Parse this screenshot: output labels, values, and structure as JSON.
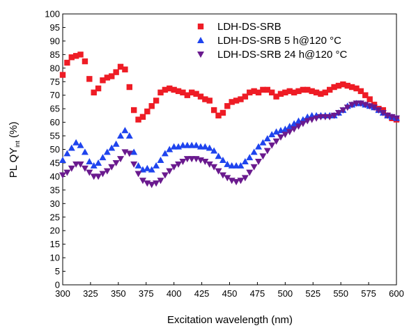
{
  "chart_data": {
    "type": "scatter",
    "xlabel": "Excitation wavelength (nm)",
    "ylabel_main": "PL QY",
    "ylabel_sub": "int",
    "ylabel_unit": " (%)",
    "xlim": [
      300,
      600
    ],
    "ylim": [
      0,
      100
    ],
    "xticks": [
      300,
      325,
      350,
      375,
      400,
      425,
      450,
      475,
      500,
      525,
      550,
      575,
      600
    ],
    "yticks": [
      0,
      5,
      10,
      15,
      20,
      25,
      30,
      35,
      40,
      45,
      50,
      55,
      60,
      65,
      70,
      75,
      80,
      85,
      90,
      95,
      100
    ],
    "grid": false,
    "legend_position": "top-right",
    "series": [
      {
        "name": "LDH-DS-SRB",
        "marker": "square",
        "color": "#ee1c25",
        "x": [
          300,
          304,
          308,
          312,
          316,
          320,
          324,
          328,
          332,
          336,
          340,
          344,
          348,
          352,
          356,
          360,
          364,
          368,
          372,
          376,
          380,
          384,
          388,
          392,
          396,
          400,
          404,
          408,
          412,
          416,
          420,
          424,
          428,
          432,
          436,
          440,
          444,
          448,
          452,
          456,
          460,
          464,
          468,
          472,
          476,
          480,
          484,
          488,
          492,
          496,
          500,
          504,
          508,
          512,
          516,
          520,
          524,
          528,
          532,
          536,
          540,
          544,
          548,
          552,
          556,
          560,
          564,
          568,
          572,
          576,
          580,
          584,
          588,
          592,
          596,
          600
        ],
        "y": [
          77.5,
          82,
          84,
          84.5,
          85,
          82.5,
          76,
          71,
          72.5,
          75.5,
          76.5,
          77,
          78.5,
          80.5,
          79.5,
          73,
          64.5,
          61,
          62,
          64,
          66,
          68,
          71,
          72,
          72.5,
          72,
          71.5,
          71,
          70,
          71,
          70.5,
          69.5,
          68.5,
          68,
          64.5,
          62.5,
          63.5,
          66,
          67.5,
          68,
          68.5,
          69.5,
          71,
          71.5,
          71,
          72,
          72,
          71,
          69.5,
          70.5,
          71,
          71.5,
          71,
          71.5,
          72,
          72,
          71.5,
          71,
          70.5,
          71,
          72,
          73,
          73.5,
          74,
          73.5,
          73,
          72.5,
          71.5,
          70,
          68.5,
          66.5,
          65,
          64.5,
          62.5,
          61.5,
          61
        ]
      },
      {
        "name": "LDH-DS-SRB 5 h@120 °C",
        "marker": "triangle-up",
        "color": "#1f44ee",
        "x": [
          300,
          304,
          308,
          312,
          316,
          320,
          324,
          328,
          332,
          336,
          340,
          344,
          348,
          352,
          356,
          360,
          364,
          368,
          372,
          376,
          380,
          384,
          388,
          392,
          396,
          400,
          404,
          408,
          412,
          416,
          420,
          424,
          428,
          432,
          436,
          440,
          444,
          448,
          452,
          456,
          460,
          464,
          468,
          472,
          476,
          480,
          484,
          488,
          492,
          496,
          500,
          504,
          508,
          512,
          516,
          520,
          524,
          528,
          532,
          536,
          540,
          544,
          548,
          552,
          556,
          560,
          564,
          568,
          572,
          576,
          580,
          584,
          588,
          592,
          596,
          600
        ],
        "y": [
          46,
          48.5,
          50.5,
          52.5,
          51.5,
          49,
          45.5,
          44,
          45,
          47,
          49,
          50.5,
          52,
          55,
          57,
          55,
          49,
          44,
          42.5,
          43,
          42.5,
          44,
          46,
          48.5,
          50,
          51,
          51,
          51.5,
          51.5,
          51.5,
          51.5,
          51,
          51,
          50.5,
          49.5,
          47.5,
          46,
          44.5,
          44,
          44,
          44,
          45.5,
          47,
          49,
          51,
          52.5,
          54,
          55.5,
          56.5,
          57,
          57.5,
          58.5,
          59.5,
          60.5,
          61,
          62,
          62.5,
          62.5,
          62.5,
          62.5,
          62.5,
          62.5,
          63.5,
          64.5,
          66,
          66.5,
          67,
          67,
          66.5,
          66,
          65.5,
          64.5,
          63.5,
          62.5,
          62,
          61.5
        ]
      },
      {
        "name": "LDH-DS-SRB 24 h@120 °C",
        "marker": "triangle-down",
        "color": "#6a1a8e",
        "x": [
          300,
          304,
          308,
          312,
          316,
          320,
          324,
          328,
          332,
          336,
          340,
          344,
          348,
          352,
          356,
          360,
          364,
          368,
          372,
          376,
          380,
          384,
          388,
          392,
          396,
          400,
          404,
          408,
          412,
          416,
          420,
          424,
          428,
          432,
          436,
          440,
          444,
          448,
          452,
          456,
          460,
          464,
          468,
          472,
          476,
          480,
          484,
          488,
          492,
          496,
          500,
          504,
          508,
          512,
          516,
          520,
          524,
          528,
          532,
          536,
          540,
          544,
          548,
          552,
          556,
          560,
          564,
          568,
          572,
          576,
          580,
          584,
          588,
          592,
          596,
          600
        ],
        "y": [
          40.5,
          41.5,
          43,
          44.5,
          44.5,
          43,
          41.5,
          40,
          40,
          41,
          42,
          43.5,
          45,
          46.5,
          49,
          48.5,
          44.5,
          41,
          38.5,
          37.5,
          37,
          37.5,
          38.5,
          40.5,
          42,
          43.5,
          44.5,
          45.5,
          46.5,
          46.5,
          46.5,
          46,
          45.5,
          44.5,
          43.5,
          42,
          40.5,
          39.5,
          38.5,
          38,
          38.5,
          39.5,
          41.5,
          43.5,
          45.5,
          47.5,
          49.5,
          51.5,
          53,
          54.5,
          55.5,
          56.5,
          57.5,
          58.5,
          59.5,
          60.5,
          61,
          61.5,
          62,
          62,
          62,
          62.5,
          63.5,
          64.5,
          65.5,
          66.5,
          67,
          67,
          66.5,
          66,
          65.5,
          64.5,
          63.5,
          62.5,
          62,
          61.5
        ]
      }
    ]
  }
}
